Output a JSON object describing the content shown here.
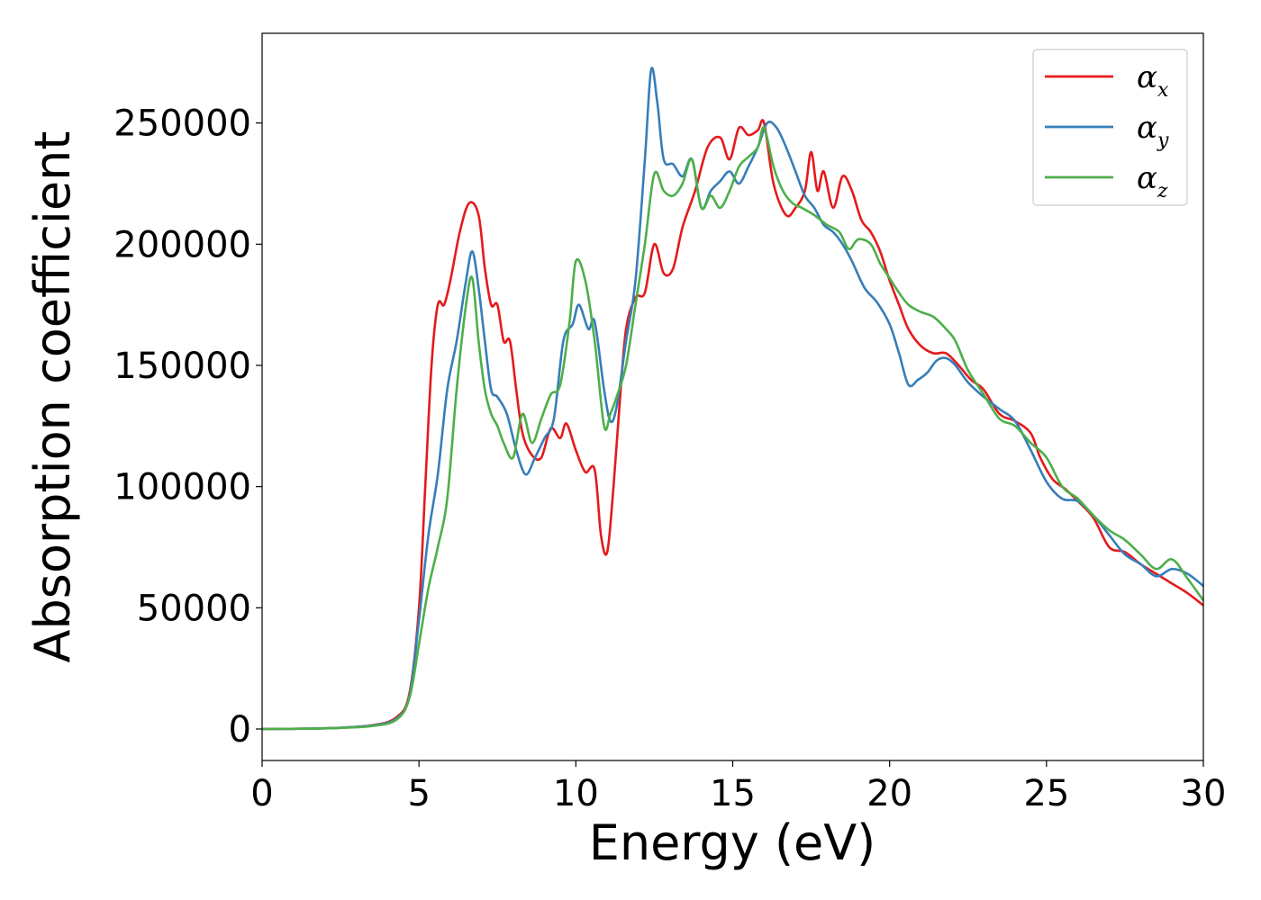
{
  "chart_data": {
    "type": "line",
    "title": "",
    "xlabel": "Energy (eV)",
    "ylabel": "Absorption coefficient",
    "xlim": [
      0,
      30
    ],
    "ylim": [
      -13000,
      287000
    ],
    "xticks": [
      0,
      5,
      10,
      15,
      20,
      25,
      30
    ],
    "yticks": [
      0,
      50000,
      100000,
      150000,
      200000,
      250000
    ],
    "xtick_labels": [
      "0",
      "5",
      "10",
      "15",
      "20",
      "25",
      "30"
    ],
    "ytick_labels": [
      "0",
      "50000",
      "100000",
      "150000",
      "200000",
      "250000"
    ],
    "grid": false,
    "legend_position": "top-right",
    "series": [
      {
        "name": "α_x",
        "label_main": "α",
        "label_sub": "x",
        "color": "#e41a1c",
        "points": [
          [
            0,
            0
          ],
          [
            2,
            300
          ],
          [
            3.5,
            1500
          ],
          [
            4.3,
            5000
          ],
          [
            4.7,
            15000
          ],
          [
            5.0,
            50000
          ],
          [
            5.2,
            100000
          ],
          [
            5.4,
            150000
          ],
          [
            5.6,
            175000
          ],
          [
            5.8,
            175000
          ],
          [
            6.0,
            185000
          ],
          [
            6.3,
            205000
          ],
          [
            6.6,
            217000
          ],
          [
            6.9,
            212000
          ],
          [
            7.1,
            190000
          ],
          [
            7.3,
            175000
          ],
          [
            7.5,
            175000
          ],
          [
            7.7,
            160000
          ],
          [
            7.9,
            160000
          ],
          [
            8.1,
            140000
          ],
          [
            8.3,
            122000
          ],
          [
            8.6,
            113000
          ],
          [
            8.9,
            112000
          ],
          [
            9.2,
            124000
          ],
          [
            9.5,
            120000
          ],
          [
            9.7,
            126000
          ],
          [
            10.0,
            115000
          ],
          [
            10.3,
            106000
          ],
          [
            10.6,
            107000
          ],
          [
            10.8,
            80000
          ],
          [
            11.0,
            73000
          ],
          [
            11.2,
            100000
          ],
          [
            11.4,
            135000
          ],
          [
            11.6,
            165000
          ],
          [
            11.9,
            178000
          ],
          [
            12.2,
            180000
          ],
          [
            12.5,
            200000
          ],
          [
            12.8,
            188000
          ],
          [
            13.1,
            190000
          ],
          [
            13.4,
            207000
          ],
          [
            13.8,
            222000
          ],
          [
            14.2,
            240000
          ],
          [
            14.6,
            244000
          ],
          [
            14.9,
            235000
          ],
          [
            15.2,
            248000
          ],
          [
            15.5,
            245000
          ],
          [
            15.8,
            247000
          ],
          [
            16.0,
            250000
          ],
          [
            16.3,
            225000
          ],
          [
            16.7,
            212000
          ],
          [
            17.0,
            215000
          ],
          [
            17.3,
            222000
          ],
          [
            17.5,
            238000
          ],
          [
            17.7,
            222000
          ],
          [
            17.9,
            230000
          ],
          [
            18.2,
            215000
          ],
          [
            18.5,
            228000
          ],
          [
            18.8,
            222000
          ],
          [
            19.1,
            210000
          ],
          [
            19.4,
            205000
          ],
          [
            19.7,
            197000
          ],
          [
            20.0,
            185000
          ],
          [
            20.3,
            175000
          ],
          [
            20.6,
            165000
          ],
          [
            21.0,
            158000
          ],
          [
            21.4,
            155000
          ],
          [
            21.8,
            155000
          ],
          [
            22.2,
            150000
          ],
          [
            22.6,
            144000
          ],
          [
            23.0,
            140000
          ],
          [
            23.5,
            130000
          ],
          [
            24.0,
            127000
          ],
          [
            24.5,
            122000
          ],
          [
            24.8,
            112000
          ],
          [
            25.2,
            103000
          ],
          [
            25.6,
            99000
          ],
          [
            26.0,
            94000
          ],
          [
            26.5,
            87000
          ],
          [
            27.0,
            75000
          ],
          [
            27.5,
            73000
          ],
          [
            28.0,
            68000
          ],
          [
            28.5,
            64000
          ],
          [
            29.0,
            60000
          ],
          [
            29.5,
            56000
          ],
          [
            30.0,
            51000
          ]
        ]
      },
      {
        "name": "α_y",
        "label_main": "α",
        "label_sub": "y",
        "color": "#377eb8",
        "points": [
          [
            0,
            0
          ],
          [
            2,
            300
          ],
          [
            3.5,
            1400
          ],
          [
            4.3,
            4500
          ],
          [
            4.7,
            14000
          ],
          [
            5.0,
            45000
          ],
          [
            5.3,
            80000
          ],
          [
            5.6,
            105000
          ],
          [
            5.9,
            140000
          ],
          [
            6.2,
            160000
          ],
          [
            6.5,
            185000
          ],
          [
            6.7,
            197000
          ],
          [
            6.9,
            182000
          ],
          [
            7.1,
            160000
          ],
          [
            7.3,
            140000
          ],
          [
            7.5,
            137000
          ],
          [
            7.8,
            130000
          ],
          [
            8.1,
            115000
          ],
          [
            8.4,
            105000
          ],
          [
            8.7,
            112000
          ],
          [
            9.0,
            120000
          ],
          [
            9.3,
            128000
          ],
          [
            9.6,
            160000
          ],
          [
            9.9,
            167000
          ],
          [
            10.1,
            175000
          ],
          [
            10.4,
            165000
          ],
          [
            10.6,
            168000
          ],
          [
            10.9,
            140000
          ],
          [
            11.1,
            127000
          ],
          [
            11.3,
            133000
          ],
          [
            11.6,
            160000
          ],
          [
            11.9,
            185000
          ],
          [
            12.2,
            235000
          ],
          [
            12.4,
            272000
          ],
          [
            12.6,
            258000
          ],
          [
            12.8,
            235000
          ],
          [
            13.1,
            233000
          ],
          [
            13.4,
            228000
          ],
          [
            13.7,
            235000
          ],
          [
            14.0,
            215000
          ],
          [
            14.3,
            222000
          ],
          [
            14.6,
            226000
          ],
          [
            14.9,
            230000
          ],
          [
            15.2,
            225000
          ],
          [
            15.5,
            232000
          ],
          [
            15.8,
            240000
          ],
          [
            16.1,
            250000
          ],
          [
            16.4,
            248000
          ],
          [
            16.7,
            240000
          ],
          [
            17.0,
            230000
          ],
          [
            17.3,
            220000
          ],
          [
            17.6,
            215000
          ],
          [
            17.9,
            208000
          ],
          [
            18.2,
            205000
          ],
          [
            18.5,
            200000
          ],
          [
            18.8,
            193000
          ],
          [
            19.2,
            182000
          ],
          [
            19.6,
            176000
          ],
          [
            20.0,
            167000
          ],
          [
            20.3,
            155000
          ],
          [
            20.6,
            142000
          ],
          [
            20.9,
            144000
          ],
          [
            21.2,
            147000
          ],
          [
            21.5,
            152000
          ],
          [
            21.8,
            153000
          ],
          [
            22.1,
            150000
          ],
          [
            22.5,
            143000
          ],
          [
            23.0,
            137000
          ],
          [
            23.5,
            132000
          ],
          [
            24.0,
            127000
          ],
          [
            24.5,
            115000
          ],
          [
            25.0,
            102000
          ],
          [
            25.5,
            95000
          ],
          [
            26.0,
            94000
          ],
          [
            26.5,
            88000
          ],
          [
            27.0,
            80000
          ],
          [
            27.5,
            72000
          ],
          [
            28.0,
            68000
          ],
          [
            28.5,
            63000
          ],
          [
            29.0,
            66000
          ],
          [
            29.5,
            64000
          ],
          [
            30.0,
            59000
          ]
        ]
      },
      {
        "name": "α_z",
        "label_main": "α",
        "label_sub": "z",
        "color": "#4daf4a",
        "points": [
          [
            0,
            0
          ],
          [
            2,
            250
          ],
          [
            3.5,
            1200
          ],
          [
            4.3,
            4000
          ],
          [
            4.7,
            13000
          ],
          [
            5.0,
            35000
          ],
          [
            5.3,
            58000
          ],
          [
            5.6,
            75000
          ],
          [
            5.9,
            95000
          ],
          [
            6.2,
            140000
          ],
          [
            6.5,
            175000
          ],
          [
            6.7,
            186000
          ],
          [
            6.9,
            160000
          ],
          [
            7.1,
            140000
          ],
          [
            7.3,
            130000
          ],
          [
            7.5,
            125000
          ],
          [
            7.7,
            118000
          ],
          [
            8.0,
            112000
          ],
          [
            8.3,
            130000
          ],
          [
            8.6,
            118000
          ],
          [
            8.9,
            128000
          ],
          [
            9.2,
            138000
          ],
          [
            9.5,
            142000
          ],
          [
            9.8,
            168000
          ],
          [
            10.0,
            193000
          ],
          [
            10.3,
            185000
          ],
          [
            10.6,
            160000
          ],
          [
            10.9,
            125000
          ],
          [
            11.1,
            130000
          ],
          [
            11.3,
            137000
          ],
          [
            11.6,
            150000
          ],
          [
            11.9,
            175000
          ],
          [
            12.2,
            200000
          ],
          [
            12.5,
            229000
          ],
          [
            12.8,
            222000
          ],
          [
            13.1,
            220000
          ],
          [
            13.4,
            225000
          ],
          [
            13.7,
            235000
          ],
          [
            14.0,
            215000
          ],
          [
            14.3,
            220000
          ],
          [
            14.6,
            215000
          ],
          [
            14.9,
            222000
          ],
          [
            15.2,
            232000
          ],
          [
            15.5,
            236000
          ],
          [
            15.8,
            240000
          ],
          [
            16.0,
            248000
          ],
          [
            16.3,
            232000
          ],
          [
            16.6,
            222000
          ],
          [
            16.9,
            217000
          ],
          [
            17.2,
            215000
          ],
          [
            17.6,
            212000
          ],
          [
            18.0,
            208000
          ],
          [
            18.4,
            205000
          ],
          [
            18.7,
            198000
          ],
          [
            19.0,
            202000
          ],
          [
            19.4,
            200000
          ],
          [
            19.7,
            192000
          ],
          [
            20.0,
            186000
          ],
          [
            20.3,
            180000
          ],
          [
            20.6,
            175000
          ],
          [
            21.0,
            172000
          ],
          [
            21.4,
            170000
          ],
          [
            21.8,
            165000
          ],
          [
            22.1,
            160000
          ],
          [
            22.5,
            148000
          ],
          [
            23.0,
            138000
          ],
          [
            23.5,
            128000
          ],
          [
            24.0,
            125000
          ],
          [
            24.5,
            118000
          ],
          [
            25.0,
            112000
          ],
          [
            25.5,
            100000
          ],
          [
            26.0,
            95000
          ],
          [
            26.5,
            88000
          ],
          [
            27.0,
            82000
          ],
          [
            27.5,
            78000
          ],
          [
            28.0,
            72000
          ],
          [
            28.5,
            66000
          ],
          [
            29.0,
            70000
          ],
          [
            29.5,
            62000
          ],
          [
            30.0,
            53000
          ]
        ]
      }
    ]
  }
}
